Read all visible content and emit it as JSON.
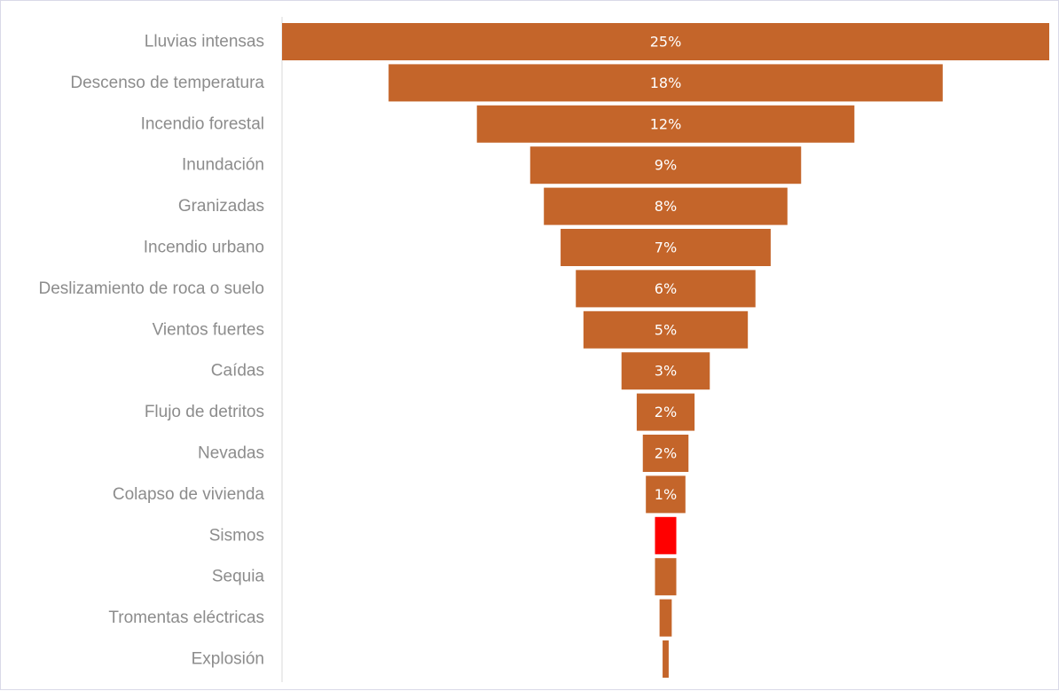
{
  "chart_data": {
    "type": "bar",
    "orientation": "horizontal",
    "layout": "funnel",
    "categories": [
      "Lluvias intensas",
      "Descenso de temperatura",
      "Incendio forestal",
      "Inundación",
      "Granizadas",
      "Incendio urbano",
      "Deslizamiento de roca o suelo",
      "Vientos fuertes",
      "Caídas",
      "Flujo de detritos",
      "Nevadas",
      "Colapso de vivienda",
      "Sismos",
      "Sequia",
      "Tromentas eléctricas",
      "Explosión"
    ],
    "values": [
      25.2,
      18.2,
      12.4,
      8.9,
      8.0,
      6.9,
      5.9,
      5.4,
      2.9,
      1.9,
      1.5,
      1.3,
      0.7,
      0.7,
      0.4,
      0.2
    ],
    "data_labels": [
      "25%",
      "18%",
      "12%",
      "9%",
      "8%",
      "7%",
      "6%",
      "5%",
      "3%",
      "2%",
      "2%",
      "1%",
      "",
      "",
      "",
      ""
    ],
    "bar_colors": [
      "#c4652a",
      "#c4652a",
      "#c4652a",
      "#c4652a",
      "#c4652a",
      "#c4652a",
      "#c4652a",
      "#c4652a",
      "#c4652a",
      "#c4652a",
      "#c4652a",
      "#c4652a",
      "#ff0000",
      "#c4652a",
      "#c4652a",
      "#c4652a"
    ],
    "xlim": [
      0,
      25.2
    ],
    "title": "",
    "xlabel": "",
    "ylabel": "",
    "grid": false,
    "legend": "none"
  }
}
